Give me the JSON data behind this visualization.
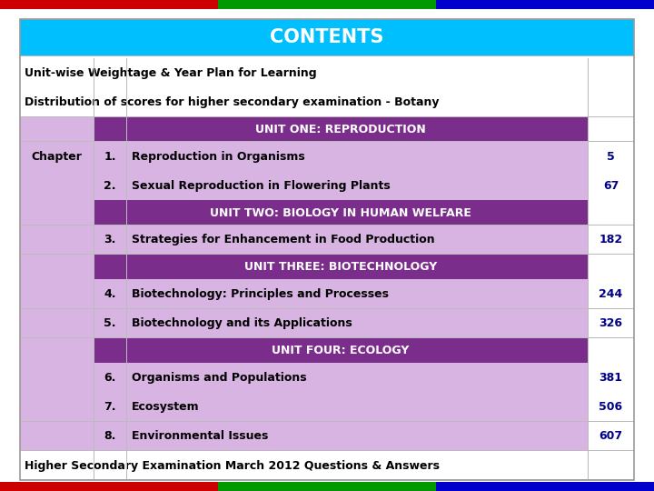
{
  "title": "CONTENTS",
  "title_bg": "#00BFFF",
  "title_color": "#FFFFFF",
  "bar_colors": [
    "#CC0000",
    "#009900",
    "#0000CC"
  ],
  "unit_bg": "#7B2D8B",
  "unit_color": "#FFFFFF",
  "chapter_bg": "#D8B4E2",
  "page_color": "#00008B",
  "rows": [
    {
      "col1": "Unit-wise Weightage & Year Plan for Learning",
      "col2": "",
      "col3": "",
      "col4": "",
      "type": "header_row"
    },
    {
      "col1": "Distribution of scores for higher secondary examination - Botany",
      "col2": "",
      "col3": "",
      "col4": "",
      "type": "header_row"
    },
    {
      "col1": "",
      "col2": "",
      "col3": "UNIT ONE: REPRODUCTION",
      "col4": "",
      "type": "unit"
    },
    {
      "col1": "Chapter",
      "col2": "1.",
      "col3": "Reproduction in Organisms",
      "col4": "5",
      "type": "chapter"
    },
    {
      "col1": "",
      "col2": "2.",
      "col3": "Sexual Reproduction in Flowering Plants",
      "col4": "67",
      "type": "chapter"
    },
    {
      "col1": "",
      "col2": "",
      "col3": "UNIT TWO: BIOLOGY IN HUMAN WELFARE",
      "col4": "",
      "type": "unit"
    },
    {
      "col1": "",
      "col2": "3.",
      "col3": "Strategies for Enhancement in Food Production",
      "col4": "182",
      "type": "chapter"
    },
    {
      "col1": "",
      "col2": "",
      "col3": "UNIT THREE: BIOTECHNOLOGY",
      "col4": "",
      "type": "unit"
    },
    {
      "col1": "",
      "col2": "4.",
      "col3": "Biotechnology: Principles and Processes",
      "col4": "244",
      "type": "chapter"
    },
    {
      "col1": "",
      "col2": "5.",
      "col3": "Biotechnology and its Applications",
      "col4": "326",
      "type": "chapter"
    },
    {
      "col1": "",
      "col2": "",
      "col3": "UNIT FOUR: ECOLOGY",
      "col4": "",
      "type": "unit"
    },
    {
      "col1": "",
      "col2": "6.",
      "col3": "Organisms and Populations",
      "col4": "381",
      "type": "chapter"
    },
    {
      "col1": "",
      "col2": "7.",
      "col3": "Ecosystem",
      "col4": "506",
      "type": "chapter"
    },
    {
      "col1": "",
      "col2": "8.",
      "col3": "Environmental Issues",
      "col4": "607",
      "type": "chapter"
    },
    {
      "col1": "Higher Secondary Examination March 2012 Questions & Answers",
      "col2": "",
      "col3": "",
      "col4": "",
      "type": "footer_row"
    }
  ]
}
